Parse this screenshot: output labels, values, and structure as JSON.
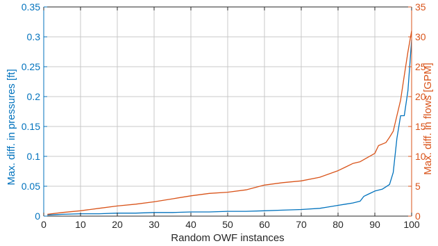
{
  "chart_data": {
    "type": "line",
    "xlabel": "Random OWF instances",
    "ylabel_left": "Max. diff. in pressures [ft]",
    "ylabel_right": "Max. diff. in flows [GPM]",
    "xlim": [
      0,
      100
    ],
    "ylim_left": [
      0,
      0.35
    ],
    "ylim_right": [
      0,
      35
    ],
    "x_ticks": [
      0,
      10,
      20,
      30,
      40,
      50,
      60,
      70,
      80,
      90,
      100
    ],
    "y_left_ticks": [
      0,
      0.05,
      0.1,
      0.15,
      0.2,
      0.25,
      0.3,
      0.35
    ],
    "y_left_tick_labels": [
      "0",
      "0.05",
      "0.1",
      "0.15",
      "0.2",
      "0.25",
      "0.3",
      "0.35"
    ],
    "y_right_ticks": [
      0,
      5,
      10,
      15,
      20,
      25,
      30,
      35
    ],
    "grid": true,
    "colors": {
      "left": "#0072BD",
      "right": "#D95319",
      "grid": "#c8c8c8",
      "axis": "#262626"
    },
    "series": [
      {
        "axis": "left",
        "x": [
          1,
          5,
          10,
          15,
          20,
          25,
          30,
          35,
          40,
          45,
          50,
          55,
          60,
          65,
          70,
          75,
          77,
          80,
          82,
          84,
          86,
          87,
          88,
          89,
          90,
          92,
          93,
          94,
          95,
          96,
          97,
          98,
          99,
          100
        ],
        "y": [
          0.002,
          0.003,
          0.004,
          0.004,
          0.005,
          0.005,
          0.006,
          0.006,
          0.007,
          0.007,
          0.008,
          0.008,
          0.009,
          0.01,
          0.011,
          0.013,
          0.015,
          0.018,
          0.02,
          0.022,
          0.025,
          0.033,
          0.036,
          0.039,
          0.042,
          0.045,
          0.049,
          0.053,
          0.073,
          0.13,
          0.168,
          0.168,
          0.21,
          0.295
        ]
      },
      {
        "axis": "right",
        "x": [
          1,
          5,
          10,
          15,
          20,
          25,
          30,
          35,
          40,
          45,
          50,
          55,
          60,
          65,
          70,
          75,
          80,
          82,
          84,
          86,
          88,
          90,
          91,
          93,
          94,
          95,
          96,
          97,
          98,
          99,
          100
        ],
        "y": [
          0.3,
          0.6,
          0.9,
          1.3,
          1.7,
          2.0,
          2.4,
          2.9,
          3.4,
          3.8,
          4.0,
          4.4,
          5.2,
          5.6,
          5.9,
          6.5,
          7.6,
          8.2,
          8.8,
          9.1,
          9.8,
          10.5,
          11.8,
          12.3,
          13.2,
          14.2,
          16.8,
          19.4,
          23.5,
          27.5,
          31.0
        ]
      }
    ]
  }
}
